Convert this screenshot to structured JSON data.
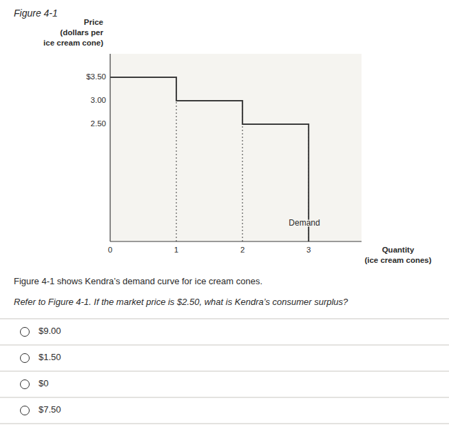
{
  "chart_data": {
    "type": "line",
    "title": "Figure 4-1",
    "x_label": "Quantity\n(ice cream cones)",
    "y_label": "Price\n(dollars per\nice cream cone)",
    "x": [
      0,
      1,
      1,
      2,
      2,
      3,
      3
    ],
    "values": [
      3.5,
      3.5,
      3.0,
      3.0,
      2.5,
      2.5,
      0.0
    ],
    "color": "#3a3a3a",
    "vlines": [
      {
        "x": 1,
        "y0": 0,
        "y1": 3.5
      },
      {
        "x": 2,
        "y0": 0,
        "y1": 3.0
      },
      {
        "x": 3,
        "y0": 0,
        "y1": 2.5
      }
    ],
    "xlim": [
      0,
      3.8
    ],
    "ylim": [
      0,
      4.0
    ],
    "xticks": [
      0,
      1,
      2,
      3
    ],
    "yticks": [
      {
        "value": 3.5,
        "label": "$3.50"
      },
      {
        "value": 3.0,
        "label": "3.00"
      },
      {
        "value": 2.5,
        "label": "2.50"
      }
    ],
    "grid": false,
    "annotations": [
      {
        "text": "Demand",
        "x": 2.7,
        "y": 0.38
      }
    ],
    "caption": "Figure 4-1 shows Kendra’s demand curve for ice cream cones.",
    "question": "Refer to Figure 4-1. If the market price is $2.50, what is Kendra’s consumer surplus?",
    "choices": [
      "$9.00",
      "$1.50",
      "$0",
      "$7.50"
    ]
  }
}
